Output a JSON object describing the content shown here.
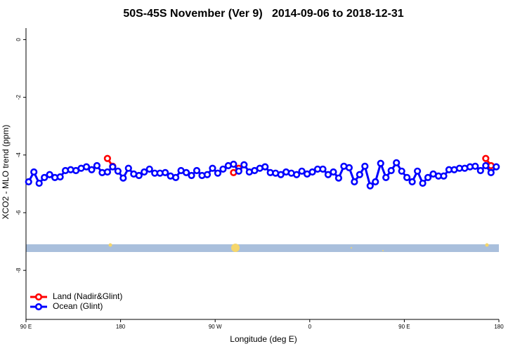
{
  "chart_data": {
    "type": "line",
    "title": "50S-45S November (Ver 9)   2014-09-06 to 2018-12-31",
    "x_label": "Longitude (deg E)",
    "y_label": "XCO2 - MLO trend (ppm)",
    "xlim": [
      90,
      540
    ],
    "ylim": [
      -9.7,
      0.4
    ],
    "xticks": [
      {
        "value": 90,
        "label": "90 E"
      },
      180,
      {
        "value": 270,
        "label": "90 W"
      },
      {
        "value": 360,
        "label": "0"
      },
      {
        "value": 450,
        "label": "90 E"
      },
      {
        "value": 540,
        "label": "180"
      }
    ],
    "yticks": [
      0,
      -2,
      -4,
      -6,
      -8
    ],
    "legend": "bottom-left",
    "series": [
      {
        "name": "Land (Nadir&Glint)",
        "color": "#ff0000",
        "x": [
          167.5,
          172.5,
          287.5,
          292.5,
          527.5,
          532.5
        ],
        "values": [
          -4.12,
          -4.39,
          -4.61,
          -4.46,
          -4.12,
          -4.37
        ]
      },
      {
        "name": "Ocean (Glint)",
        "color": "#0000ff",
        "x": [
          92.5,
          97.5,
          102.5,
          107.5,
          112.5,
          117.5,
          122.5,
          127.5,
          132.5,
          137.5,
          142.5,
          147.5,
          152.5,
          157.5,
          162.5,
          167.5,
          172.5,
          177.5,
          182.5,
          187.5,
          192.5,
          197.5,
          202.5,
          207.5,
          212.5,
          217.5,
          222.5,
          227.5,
          232.5,
          237.5,
          242.5,
          247.5,
          252.5,
          257.5,
          262.5,
          267.5,
          272.5,
          277.5,
          282.5,
          287.5,
          292.5,
          297.5,
          302.5,
          307.5,
          312.5,
          317.5,
          322.5,
          327.5,
          332.5,
          337.5,
          342.5,
          347.5,
          352.5,
          357.5,
          362.5,
          367.5,
          372.5,
          377.5,
          382.5,
          387.5,
          392.5,
          397.5,
          402.5,
          407.5,
          412.5,
          417.5,
          422.5,
          427.5,
          432.5,
          437.5,
          442.5,
          447.5,
          452.5,
          457.5,
          462.5,
          467.5,
          472.5,
          477.5,
          482.5,
          487.5,
          492.5,
          497.5,
          502.5,
          507.5,
          512.5,
          517.5,
          522.5,
          527.5,
          532.5,
          537.5
        ],
        "values": [
          -4.93,
          -4.59,
          -4.98,
          -4.78,
          -4.68,
          -4.78,
          -4.76,
          -4.54,
          -4.51,
          -4.54,
          -4.46,
          -4.41,
          -4.51,
          -4.37,
          -4.61,
          -4.59,
          -4.41,
          -4.56,
          -4.8,
          -4.46,
          -4.66,
          -4.71,
          -4.59,
          -4.49,
          -4.63,
          -4.63,
          -4.61,
          -4.73,
          -4.78,
          -4.54,
          -4.61,
          -4.71,
          -4.54,
          -4.71,
          -4.68,
          -4.46,
          -4.63,
          -4.49,
          -4.37,
          -4.32,
          -4.56,
          -4.34,
          -4.59,
          -4.54,
          -4.46,
          -4.41,
          -4.61,
          -4.63,
          -4.68,
          -4.59,
          -4.63,
          -4.68,
          -4.56,
          -4.66,
          -4.59,
          -4.49,
          -4.49,
          -4.68,
          -4.59,
          -4.8,
          -4.39,
          -4.44,
          -4.93,
          -4.68,
          -4.39,
          -5.07,
          -4.93,
          -4.29,
          -4.78,
          -4.54,
          -4.27,
          -4.56,
          -4.78,
          -4.93,
          -4.56,
          -4.98,
          -4.78,
          -4.66,
          -4.73,
          -4.73,
          -4.51,
          -4.51,
          -4.46,
          -4.46,
          -4.41,
          -4.39,
          -4.54,
          -4.37,
          -4.61,
          -4.41
        ]
      }
    ]
  }
}
